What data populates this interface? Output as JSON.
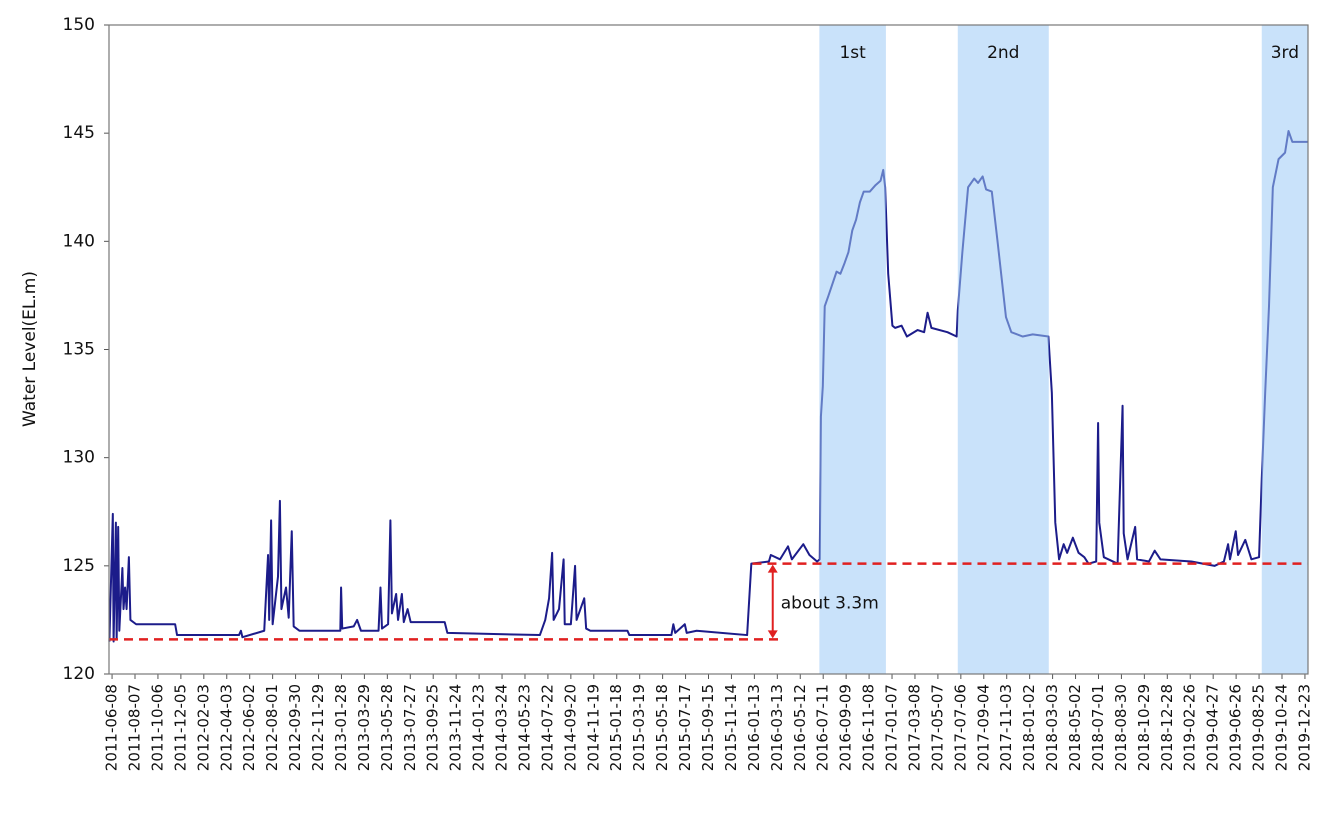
{
  "chart_data": {
    "type": "line",
    "y_label": "Water Level(EL.m)",
    "ylim": [
      120,
      150
    ],
    "yticks": [
      120,
      125,
      130,
      135,
      140,
      145,
      150
    ],
    "xlim": [
      "2011-05-31",
      "2019-12-31"
    ],
    "xticks": [
      "2011-06-08",
      "2011-08-07",
      "2011-10-06",
      "2011-12-05",
      "2012-02-03",
      "2012-04-03",
      "2012-06-02",
      "2012-08-01",
      "2012-09-30",
      "2012-11-29",
      "2013-01-28",
      "2013-03-29",
      "2013-05-28",
      "2013-07-27",
      "2013-09-25",
      "2013-11-24",
      "2014-01-23",
      "2014-03-24",
      "2014-05-23",
      "2014-07-22",
      "2014-09-20",
      "2014-11-19",
      "2015-01-18",
      "2015-03-19",
      "2015-05-18",
      "2015-07-17",
      "2015-09-15",
      "2015-11-14",
      "2016-01-13",
      "2016-03-13",
      "2016-05-12",
      "2016-07-11",
      "2016-09-09",
      "2016-11-08",
      "2017-01-07",
      "2017-03-08",
      "2017-05-07",
      "2017-07-06",
      "2017-09-04",
      "2017-11-03",
      "2018-01-02",
      "2018-03-03",
      "2018-05-02",
      "2018-07-01",
      "2018-08-30",
      "2018-10-29",
      "2018-12-28",
      "2019-02-26",
      "2019-04-27",
      "2019-06-26",
      "2019-08-25",
      "2019-10-24",
      "2019-12-23"
    ],
    "color": "#1c1c8a",
    "x": [
      "2011-06-01",
      "2011-06-10",
      "2011-06-12",
      "2011-06-18",
      "2011-06-20",
      "2011-06-24",
      "2011-06-27",
      "2011-07-05",
      "2011-07-08",
      "2011-07-12",
      "2011-07-16",
      "2011-07-22",
      "2011-07-26",
      "2011-08-10",
      "2011-11-20",
      "2011-11-25",
      "2012-05-05",
      "2012-05-10",
      "2012-05-14",
      "2012-07-10",
      "2012-07-20",
      "2012-07-23",
      "2012-07-28",
      "2012-08-01",
      "2012-08-15",
      "2012-08-20",
      "2012-08-24",
      "2012-09-05",
      "2012-09-12",
      "2012-09-20",
      "2012-09-25",
      "2012-10-10",
      "2013-01-25",
      "2013-01-27",
      "2013-01-30",
      "2013-03-01",
      "2013-03-10",
      "2013-03-20",
      "2013-05-05",
      "2013-05-10",
      "2013-05-14",
      "2013-05-30",
      "2013-06-05",
      "2013-06-09",
      "2013-06-20",
      "2013-06-25",
      "2013-07-05",
      "2013-07-10",
      "2013-07-20",
      "2013-07-28",
      "2013-10-25",
      "2013-11-01",
      "2014-07-01",
      "2014-07-15",
      "2014-07-25",
      "2014-08-02",
      "2014-08-06",
      "2014-08-20",
      "2014-09-01",
      "2014-09-04",
      "2014-09-20",
      "2014-10-01",
      "2014-10-05",
      "2014-10-25",
      "2014-10-30",
      "2014-11-10",
      "2015-02-15",
      "2015-02-20",
      "2015-06-10",
      "2015-06-15",
      "2015-06-20",
      "2015-07-15",
      "2015-07-20",
      "2015-08-15",
      "2015-12-25",
      "2016-01-05",
      "2016-02-20",
      "2016-02-25",
      "2016-03-20",
      "2016-04-10",
      "2016-04-20",
      "2016-05-20",
      "2016-06-05",
      "2016-06-25",
      "2016-07-02",
      "2016-07-05",
      "2016-07-10",
      "2016-07-15",
      "2016-07-25",
      "2016-08-15",
      "2016-08-25",
      "2016-09-05",
      "2016-09-15",
      "2016-09-25",
      "2016-10-05",
      "2016-10-15",
      "2016-10-25",
      "2016-11-10",
      "2016-11-25",
      "2016-12-08",
      "2016-12-15",
      "2016-12-20",
      "2016-12-28",
      "2017-01-08",
      "2017-01-15",
      "2017-02-01",
      "2017-02-15",
      "2017-03-15",
      "2017-04-01",
      "2017-04-10",
      "2017-04-20",
      "2017-06-01",
      "2017-06-25",
      "2017-06-28",
      "2017-07-10",
      "2017-07-25",
      "2017-08-10",
      "2017-08-20",
      "2017-09-01",
      "2017-09-10",
      "2017-09-25",
      "2017-10-10",
      "2017-11-01",
      "2017-11-15",
      "2017-12-15",
      "2018-01-10",
      "2018-02-20",
      "2018-03-01",
      "2018-03-10",
      "2018-03-20",
      "2018-04-01",
      "2018-04-10",
      "2018-04-25",
      "2018-05-10",
      "2018-05-25",
      "2018-06-05",
      "2018-06-25",
      "2018-06-30",
      "2018-07-03",
      "2018-07-15",
      "2018-08-20",
      "2018-09-02",
      "2018-09-05",
      "2018-09-15",
      "2018-10-05",
      "2018-10-10",
      "2018-11-10",
      "2018-11-25",
      "2018-12-10",
      "2019-03-01",
      "2019-05-01",
      "2019-05-25",
      "2019-06-05",
      "2019-06-10",
      "2019-06-25",
      "2019-07-01",
      "2019-07-20",
      "2019-08-05",
      "2019-08-25",
      "2019-09-01",
      "2019-09-10",
      "2019-09-20",
      "2019-09-30",
      "2019-10-15",
      "2019-11-01",
      "2019-11-10",
      "2019-11-20",
      "2019-12-31"
    ],
    "values": [
      121.5,
      127.4,
      121.5,
      127.0,
      121.6,
      126.8,
      122.0,
      124.9,
      123.0,
      124.0,
      123.0,
      125.4,
      122.5,
      122.3,
      122.3,
      121.8,
      121.8,
      122.0,
      121.7,
      122.0,
      125.5,
      122.5,
      127.1,
      122.3,
      124.5,
      128.0,
      123.0,
      124.0,
      122.6,
      126.6,
      122.2,
      122.0,
      122.0,
      124.0,
      122.1,
      122.2,
      122.5,
      122.0,
      122.0,
      124.0,
      122.1,
      122.3,
      127.1,
      122.8,
      123.7,
      122.5,
      123.7,
      122.4,
      123.0,
      122.4,
      122.4,
      121.9,
      121.8,
      122.5,
      123.5,
      125.6,
      122.5,
      123.0,
      125.3,
      122.3,
      122.3,
      125.0,
      122.5,
      123.5,
      122.1,
      122.0,
      122.0,
      121.8,
      121.8,
      122.3,
      121.9,
      122.3,
      121.9,
      122.0,
      121.8,
      125.1,
      125.2,
      125.5,
      125.3,
      125.9,
      125.3,
      126.0,
      125.5,
      125.2,
      125.3,
      131.9,
      133.3,
      137.0,
      137.5,
      138.6,
      138.5,
      139.0,
      139.5,
      140.5,
      141.0,
      141.8,
      142.3,
      142.3,
      142.6,
      142.8,
      143.3,
      142.5,
      138.5,
      136.1,
      136.0,
      136.1,
      135.6,
      135.9,
      135.8,
      136.7,
      136.0,
      135.8,
      135.6,
      136.8,
      139.5,
      142.5,
      142.9,
      142.7,
      143.0,
      142.4,
      142.3,
      140.0,
      136.5,
      135.8,
      135.6,
      135.7,
      135.6,
      133.0,
      127.0,
      125.3,
      126.0,
      125.6,
      126.3,
      125.6,
      125.4,
      125.1,
      125.2,
      131.6,
      127.0,
      125.4,
      125.1,
      132.4,
      126.5,
      125.3,
      126.8,
      125.3,
      125.2,
      125.7,
      125.3,
      125.2,
      125.0,
      125.2,
      126.0,
      125.3,
      126.6,
      125.5,
      126.2,
      125.3,
      125.4,
      129.0,
      133.0,
      137.0,
      142.5,
      143.8,
      144.1,
      145.1,
      144.6,
      144.6
    ],
    "shaded_periods": [
      {
        "label": "1st",
        "start": "2016-07-01",
        "end": "2016-12-22"
      },
      {
        "label": "2nd",
        "start": "2017-06-28",
        "end": "2018-02-21"
      },
      {
        "label": "3rd",
        "start": "2019-09-01",
        "end": "2019-12-31"
      }
    ],
    "shade_color": "#9ccaf5",
    "reference_lines": [
      {
        "value": 121.6,
        "start": "2011-05-31",
        "end": "2016-03-20"
      },
      {
        "value": 125.1,
        "start": "2016-01-08",
        "end": "2019-12-31"
      }
    ],
    "reference_color": "#e02020",
    "annotation": {
      "text": "about 3.3m",
      "x": "2016-03-01"
    }
  }
}
